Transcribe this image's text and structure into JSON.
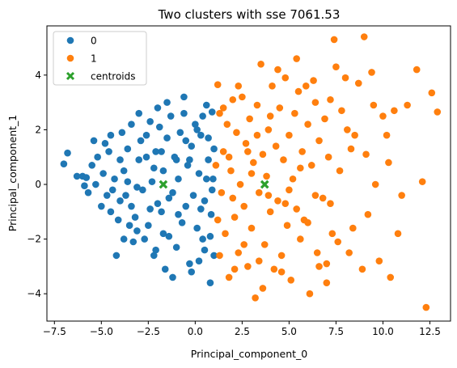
{
  "chart_data": {
    "type": "scatter",
    "title": "Two clusters with sse 7061.53",
    "xlabel": "Principal_component_0",
    "ylabel": "Principal_component_1",
    "xlim": [
      -7.9,
      13.6
    ],
    "ylim": [
      -5.0,
      5.8
    ],
    "xticks": [
      -7.5,
      -5.0,
      -2.5,
      0.0,
      2.5,
      5.0,
      7.5,
      10.0,
      12.5
    ],
    "xtick_labels": [
      "−7.5",
      "−5.0",
      "−2.5",
      "0.0",
      "2.5",
      "5.0",
      "7.5",
      "10.0",
      "12.5"
    ],
    "yticks": [
      -4,
      -2,
      0,
      2,
      4
    ],
    "ytick_labels": [
      "−4",
      "−2",
      "0",
      "2",
      "4"
    ],
    "grid": false,
    "legend_position": "top-left",
    "legend": [
      "0",
      "1",
      "centroids"
    ],
    "colors": {
      "cluster0": "#1f77b4",
      "cluster1": "#ff7f0e",
      "centroids": "#2ca02c"
    },
    "series": [
      {
        "name": "0",
        "marker": "circle",
        "points": [
          [
            -7.0,
            0.75
          ],
          [
            -6.8,
            1.15
          ],
          [
            -6.0,
            0.3
          ],
          [
            -5.8,
            0.25
          ],
          [
            -5.9,
            -0.05
          ],
          [
            -5.5,
            0.7
          ],
          [
            -5.2,
            1.0
          ],
          [
            -5.4,
            1.6
          ],
          [
            -4.8,
            1.5
          ],
          [
            -4.5,
            1.8
          ],
          [
            -5.0,
            -0.8
          ],
          [
            -4.7,
            -0.4
          ],
          [
            -4.3,
            0.2
          ],
          [
            -4.5,
            -1.0
          ],
          [
            -4.0,
            -0.6
          ],
          [
            -3.8,
            0.5
          ],
          [
            -3.6,
            1.3
          ],
          [
            -3.4,
            2.2
          ],
          [
            -3.2,
            -1.2
          ],
          [
            -3.3,
            -2.1
          ],
          [
            -3.1,
            -1.7
          ],
          [
            -3.0,
            0.9
          ],
          [
            -2.8,
            -0.2
          ],
          [
            -2.6,
            1.8
          ],
          [
            -2.5,
            -1.5
          ],
          [
            -2.4,
            2.3
          ],
          [
            -2.2,
            -2.6
          ],
          [
            -2.1,
            1.2
          ],
          [
            -2.0,
            -0.7
          ],
          [
            -1.9,
            2.1
          ],
          [
            -1.8,
            -1.0
          ],
          [
            -1.7,
            0.5
          ],
          [
            -1.6,
            -3.1
          ],
          [
            -1.5,
            1.7
          ],
          [
            -1.4,
            -1.9
          ],
          [
            -1.3,
            2.5
          ],
          [
            -1.2,
            -0.3
          ],
          [
            -1.1,
            1.0
          ],
          [
            -1.0,
            -2.3
          ],
          [
            -0.9,
            0.2
          ],
          [
            -0.8,
            1.9
          ],
          [
            -0.7,
            -1.4
          ],
          [
            -0.6,
            2.6
          ],
          [
            -0.5,
            -0.8
          ],
          [
            -0.4,
            0.7
          ],
          [
            -0.3,
            -2.9
          ],
          [
            -0.2,
            1.4
          ],
          [
            -0.1,
            -0.4
          ],
          [
            0.0,
            2.2
          ],
          [
            0.1,
            -1.6
          ],
          [
            0.2,
            0.4
          ],
          [
            0.3,
            1.8
          ],
          [
            0.4,
            -2.0
          ],
          [
            0.5,
            -0.6
          ],
          [
            0.6,
            2.9
          ],
          [
            0.7,
            0.9
          ],
          [
            0.8,
            -3.6
          ],
          [
            0.85,
            -1.1
          ],
          [
            0.9,
            2.65
          ],
          [
            0.95,
            0.2
          ],
          [
            1.0,
            -2.6
          ],
          [
            1.0,
            1.3
          ],
          [
            0.9,
            -0.2
          ],
          [
            -3.5,
            -1.5
          ],
          [
            -4.2,
            -2.6
          ],
          [
            -4.0,
            0.9
          ],
          [
            -3.7,
            -0.4
          ],
          [
            -2.9,
            1.6
          ],
          [
            -2.7,
            -2.0
          ],
          [
            -2.3,
            0.1
          ],
          [
            -1.2,
            -3.4
          ],
          [
            -0.2,
            -3.2
          ],
          [
            0.4,
            2.5
          ],
          [
            -3.0,
            2.6
          ],
          [
            -1.5,
            3.0
          ],
          [
            0.2,
            -2.8
          ],
          [
            -5.3,
            0.0
          ],
          [
            -4.9,
            0.4
          ],
          [
            -6.3,
            0.3
          ],
          [
            -5.7,
            -0.3
          ],
          [
            -4.1,
            -1.3
          ],
          [
            -3.9,
            1.9
          ],
          [
            -2.0,
            2.8
          ],
          [
            -0.6,
            3.2
          ],
          [
            0.7,
            1.7
          ],
          [
            0.8,
            -1.9
          ],
          [
            -1.8,
            1.2
          ],
          [
            -2.4,
            -0.9
          ],
          [
            -3.6,
            0.1
          ],
          [
            -4.6,
            1.2
          ],
          [
            -3.1,
            -0.1
          ],
          [
            -2.2,
            0.6
          ],
          [
            -1.4,
            -0.5
          ],
          [
            -0.9,
            -1.1
          ],
          [
            -0.3,
            0.9
          ],
          [
            0.3,
            -0.9
          ],
          [
            0.6,
            0.2
          ],
          [
            -1.7,
            -1.8
          ],
          [
            -2.6,
            1.0
          ],
          [
            -3.4,
            -0.8
          ],
          [
            -1.0,
            0.9
          ],
          [
            -0.5,
            1.6
          ],
          [
            0.1,
            2.0
          ],
          [
            0.5,
            -2.4
          ],
          [
            -4.4,
            -0.2
          ],
          [
            -3.8,
            -2.0
          ],
          [
            -2.1,
            -2.4
          ]
        ]
      },
      {
        "name": "1",
        "marker": "circle",
        "points": [
          [
            1.2,
            3.65
          ],
          [
            1.3,
            2.6
          ],
          [
            1.4,
            -0.3
          ],
          [
            1.5,
            1.2
          ],
          [
            1.6,
            -1.8
          ],
          [
            1.7,
            2.2
          ],
          [
            1.8,
            -3.4
          ],
          [
            1.9,
            0.5
          ],
          [
            2.0,
            3.1
          ],
          [
            2.1,
            -1.2
          ],
          [
            2.2,
            1.9
          ],
          [
            2.3,
            -2.5
          ],
          [
            2.4,
            0.0
          ],
          [
            2.5,
            3.2
          ],
          [
            2.6,
            -0.8
          ],
          [
            2.7,
            1.5
          ],
          [
            2.8,
            -3.0
          ],
          [
            2.9,
            2.4
          ],
          [
            3.0,
            -1.6
          ],
          [
            3.1,
            0.8
          ],
          [
            3.2,
            -4.15
          ],
          [
            3.3,
            2.9
          ],
          [
            3.4,
            -0.3
          ],
          [
            3.5,
            4.4
          ],
          [
            3.6,
            1.1
          ],
          [
            3.7,
            -2.2
          ],
          [
            3.8,
            0.3
          ],
          [
            3.9,
            2.0
          ],
          [
            4.0,
            -1.0
          ],
          [
            4.1,
            3.6
          ],
          [
            4.2,
            -3.1
          ],
          [
            4.3,
            1.4
          ],
          [
            4.4,
            -0.6
          ],
          [
            4.5,
            2.8
          ],
          [
            4.6,
            -2.6
          ],
          [
            4.7,
            0.9
          ],
          [
            4.8,
            3.9
          ],
          [
            4.9,
            -1.5
          ],
          [
            5.0,
            1.8
          ],
          [
            5.1,
            -3.5
          ],
          [
            5.2,
            0.2
          ],
          [
            5.3,
            2.6
          ],
          [
            5.4,
            -0.9
          ],
          [
            5.5,
            3.4
          ],
          [
            5.6,
            -2.0
          ],
          [
            5.7,
            1.2
          ],
          [
            5.8,
            -1.3
          ],
          [
            6.0,
            2.2
          ],
          [
            6.1,
            -4.0
          ],
          [
            6.2,
            0.7
          ],
          [
            6.4,
            3.0
          ],
          [
            6.5,
            -2.5
          ],
          [
            6.6,
            1.6
          ],
          [
            6.8,
            -0.5
          ],
          [
            6.9,
            2.4
          ],
          [
            7.0,
            -3.6
          ],
          [
            7.1,
            1.0
          ],
          [
            7.2,
            3.1
          ],
          [
            7.3,
            -1.8
          ],
          [
            7.4,
            5.3
          ],
          [
            7.5,
            4.3
          ],
          [
            7.6,
            -2.1
          ],
          [
            7.8,
            2.7
          ],
          [
            8.0,
            3.9
          ],
          [
            8.2,
            -2.5
          ],
          [
            8.5,
            1.8
          ],
          [
            8.7,
            3.7
          ],
          [
            8.9,
            -3.1
          ],
          [
            9.0,
            5.4
          ],
          [
            9.2,
            -1.1
          ],
          [
            9.4,
            4.1
          ],
          [
            9.6,
            0.0
          ],
          [
            10.0,
            2.5
          ],
          [
            10.2,
            1.8
          ],
          [
            10.3,
            0.8
          ],
          [
            10.4,
            -3.4
          ],
          [
            10.6,
            2.7
          ],
          [
            11.0,
            -0.4
          ],
          [
            11.3,
            2.9
          ],
          [
            11.8,
            4.2
          ],
          [
            12.1,
            0.1
          ],
          [
            12.3,
            -4.5
          ],
          [
            12.6,
            3.35
          ],
          [
            12.9,
            2.65
          ],
          [
            9.8,
            -2.8
          ],
          [
            8.3,
            1.3
          ],
          [
            7.0,
            -2.9
          ],
          [
            5.9,
            3.6
          ],
          [
            4.6,
            -3.2
          ],
          [
            3.4,
            -2.8
          ],
          [
            2.0,
            -0.5
          ],
          [
            1.8,
            1.0
          ],
          [
            2.6,
            -2.2
          ],
          [
            3.0,
            0.4
          ],
          [
            4.0,
            2.5
          ],
          [
            5.0,
            -0.2
          ],
          [
            6.0,
            -1.4
          ],
          [
            6.3,
            3.8
          ],
          [
            7.7,
            0.5
          ],
          [
            8.4,
            -1.6
          ],
          [
            9.5,
            2.9
          ],
          [
            10.8,
            -1.8
          ],
          [
            1.3,
            -2.6
          ],
          [
            1.5,
            2.8
          ],
          [
            2.3,
            3.6
          ],
          [
            3.6,
            -3.8
          ],
          [
            4.4,
            4.2
          ],
          [
            5.4,
            4.6
          ],
          [
            6.6,
            -3.0
          ],
          [
            1.1,
            0.7
          ],
          [
            1.2,
            -1.3
          ],
          [
            2.8,
            1.2
          ],
          [
            3.3,
            1.8
          ],
          [
            4.8,
            -0.7
          ],
          [
            5.6,
            0.6
          ],
          [
            6.4,
            -0.4
          ],
          [
            7.2,
            -0.7
          ],
          [
            8.1,
            2.0
          ],
          [
            9.1,
            1.1
          ],
          [
            2.1,
            -3.1
          ],
          [
            3.9,
            -0.4
          ]
        ]
      },
      {
        "name": "centroids",
        "marker": "x",
        "points": [
          [
            -1.7,
            0.0
          ],
          [
            3.7,
            0.0
          ]
        ]
      }
    ]
  }
}
